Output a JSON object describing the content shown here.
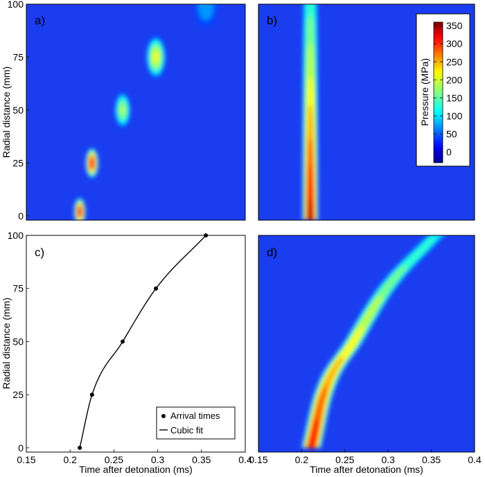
{
  "colors": {
    "background": "#ffffff",
    "contour_base": "#1a3df0",
    "contour_dark": "#0a1f9c",
    "axis": "#000000"
  },
  "chart_data": [
    {
      "id": "a",
      "type": "heatmap",
      "panel_label": "a)",
      "ylabel": "Radial distance (mm)",
      "xlim": [
        0.15,
        0.4
      ],
      "ylim": [
        -2,
        100
      ],
      "yticks": [
        "0",
        "25",
        "50",
        "75",
        "100"
      ],
      "blobs": [
        {
          "t": 0.211,
          "r": 2,
          "peak": 330
        },
        {
          "t": 0.225,
          "r": 25,
          "peak": 330
        },
        {
          "t": 0.26,
          "r": 50,
          "peak": 190
        },
        {
          "t": 0.298,
          "r": 75,
          "peak": 220
        },
        {
          "t": 0.355,
          "r": 100,
          "peak": 90
        }
      ]
    },
    {
      "id": "b",
      "type": "heatmap",
      "panel_label": "b)",
      "colorbar": {
        "label": "Pressure (MPa)",
        "ticks": [
          "350",
          "300",
          "250",
          "200",
          "150",
          "100",
          "50",
          "0"
        ],
        "min": -30,
        "max": 360
      },
      "column": {
        "t": 0.21,
        "peak_bottom": 360,
        "peak_top": 150
      }
    },
    {
      "id": "c",
      "type": "scatter",
      "panel_label": "c)",
      "xlabel": "Time after detonation (ms)",
      "ylabel": "Radial distance (mm)",
      "xlim": [
        0.15,
        0.4
      ],
      "ylim": [
        -2,
        100
      ],
      "xticks": [
        "0.15",
        "0.2",
        "0.25",
        "0.3",
        "0.35",
        "0.4"
      ],
      "yticks": [
        "0",
        "25",
        "50",
        "75",
        "100"
      ],
      "series": [
        {
          "name": "Arrival times",
          "x": [
            0.211,
            0.225,
            0.26,
            0.298,
            0.355
          ],
          "y": [
            0,
            25,
            50,
            75,
            100
          ]
        },
        {
          "name": "Cubic fit",
          "x": [
            0.211,
            0.225,
            0.26,
            0.298,
            0.355
          ],
          "y": [
            0,
            25,
            50,
            75,
            100
          ]
        }
      ],
      "legend": {
        "position": "bottom-right",
        "entries": [
          "Arrival times",
          "Cubic fit"
        ]
      }
    },
    {
      "id": "d",
      "type": "heatmap",
      "panel_label": "d)",
      "xlabel": "Time after detonation (ms)",
      "xticks": [
        "0.15",
        "0.2",
        "0.25",
        "0.3",
        "0.35",
        "0.4"
      ],
      "band": {
        "peak_bottom": 340,
        "peak_top": 130
      }
    }
  ]
}
